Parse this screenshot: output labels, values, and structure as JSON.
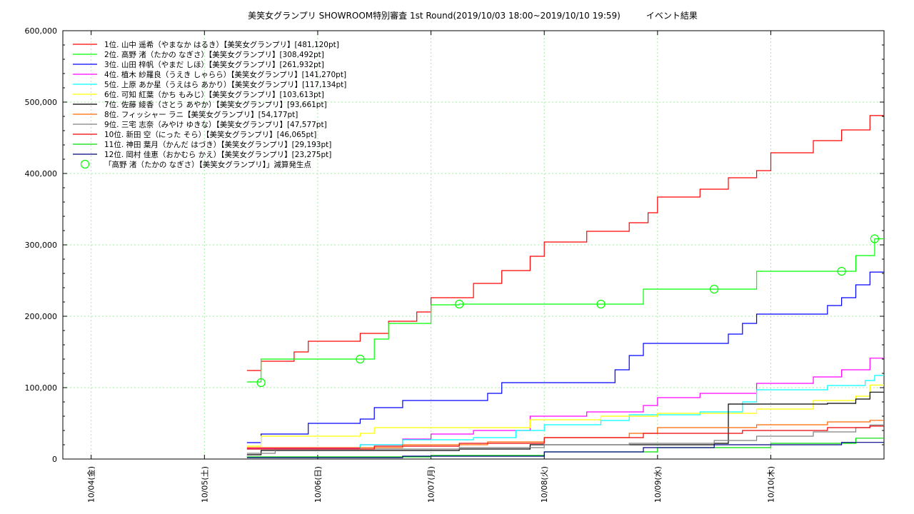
{
  "chart_data": {
    "type": "line",
    "title": "美笑女グランプリ SHOWROOM特別審査 1st Round(2019/10/03 18:00~2019/10/10 19:59)　　　イベント結果",
    "xlabel": "",
    "ylabel": "",
    "xlim": [
      "2019-10-03 18:00",
      "2019-10-10 23:59"
    ],
    "ylim": [
      0,
      600000
    ],
    "x_ticks": [
      {
        "x": "2019-10-04 00:00",
        "label": "10/04(金)"
      },
      {
        "x": "2019-10-05 00:00",
        "label": "10/05(土)"
      },
      {
        "x": "2019-10-06 00:00",
        "label": "10/06(日)"
      },
      {
        "x": "2019-10-07 00:00",
        "label": "10/07(月)"
      },
      {
        "x": "2019-10-08 00:00",
        "label": "10/08(火)"
      },
      {
        "x": "2019-10-09 00:00",
        "label": "10/09(水)"
      },
      {
        "x": "2019-10-10 00:00",
        "label": "10/10(木)"
      }
    ],
    "y_ticks": [
      {
        "value": 0,
        "label": "0"
      },
      {
        "value": 100000,
        "label": "100,000"
      },
      {
        "value": 200000,
        "label": "200,000"
      },
      {
        "value": 300000,
        "label": "300,000"
      },
      {
        "value": 400000,
        "label": "400,000"
      },
      {
        "value": 500000,
        "label": "500,000"
      },
      {
        "value": 600000,
        "label": "600,000"
      }
    ],
    "grid": true,
    "legend_position": "top-left",
    "series": [
      {
        "name": "1位. 山中 遥希（やまなか はるき）【美笑女グランプリ】[481,120pt]",
        "color": "#ff0000",
        "points": [
          [
            "2019-10-05 09:00",
            124000
          ],
          [
            "2019-10-05 12:00",
            137000
          ],
          [
            "2019-10-05 19:00",
            150000
          ],
          [
            "2019-10-05 22:00",
            165000
          ],
          [
            "2019-10-06 09:00",
            176000
          ],
          [
            "2019-10-06 15:00",
            193000
          ],
          [
            "2019-10-06 21:00",
            206000
          ],
          [
            "2019-10-07 00:00",
            226000
          ],
          [
            "2019-10-07 09:00",
            246000
          ],
          [
            "2019-10-07 15:00",
            264000
          ],
          [
            "2019-10-07 21:00",
            284000
          ],
          [
            "2019-10-08 00:00",
            304000
          ],
          [
            "2019-10-08 09:00",
            319000
          ],
          [
            "2019-10-08 18:00",
            331000
          ],
          [
            "2019-10-08 22:00",
            345000
          ],
          [
            "2019-10-09 00:00",
            367000
          ],
          [
            "2019-10-09 09:00",
            378000
          ],
          [
            "2019-10-09 15:00",
            394000
          ],
          [
            "2019-10-09 21:00",
            404000
          ],
          [
            "2019-10-10 00:00",
            429000
          ],
          [
            "2019-10-10 09:00",
            446000
          ],
          [
            "2019-10-10 15:00",
            461000
          ],
          [
            "2019-10-10 21:00",
            481120
          ],
          [
            "2019-10-10 23:59",
            481120
          ]
        ]
      },
      {
        "name": "2位. 高野 渚（たかの なぎさ）【美笑女グランプリ】[308,492pt]",
        "color": "#00ff00",
        "points": [
          [
            "2019-10-05 09:00",
            108000
          ],
          [
            "2019-10-05 12:00",
            140000
          ],
          [
            "2019-10-06 09:00",
            140000
          ],
          [
            "2019-10-06 12:00",
            168000
          ],
          [
            "2019-10-06 15:00",
            190000
          ],
          [
            "2019-10-07 00:00",
            216000
          ],
          [
            "2019-10-07 06:00",
            217000
          ],
          [
            "2019-10-08 21:00",
            238000
          ],
          [
            "2019-10-09 12:00",
            238000
          ],
          [
            "2019-10-09 21:00",
            263000
          ],
          [
            "2019-10-10 15:00",
            263000
          ],
          [
            "2019-10-10 18:00",
            285000
          ],
          [
            "2019-10-10 22:00",
            308492
          ],
          [
            "2019-10-10 23:59",
            308492
          ]
        ]
      },
      {
        "name": "3位. 山田 梓帆（やまだ しほ）【美笑女グランプリ】[261,932pt]",
        "color": "#0000ff",
        "points": [
          [
            "2019-10-05 09:00",
            23000
          ],
          [
            "2019-10-05 12:00",
            35000
          ],
          [
            "2019-10-05 22:00",
            50000
          ],
          [
            "2019-10-06 09:00",
            56000
          ],
          [
            "2019-10-06 12:00",
            72000
          ],
          [
            "2019-10-06 18:00",
            82000
          ],
          [
            "2019-10-07 06:00",
            82000
          ],
          [
            "2019-10-07 12:00",
            92000
          ],
          [
            "2019-10-07 15:00",
            107000
          ],
          [
            "2019-10-08 12:00",
            107000
          ],
          [
            "2019-10-08 15:00",
            125000
          ],
          [
            "2019-10-08 18:00",
            145000
          ],
          [
            "2019-10-08 21:00",
            162000
          ],
          [
            "2019-10-09 12:00",
            162000
          ],
          [
            "2019-10-09 15:00",
            175000
          ],
          [
            "2019-10-09 18:00",
            190000
          ],
          [
            "2019-10-09 21:00",
            203000
          ],
          [
            "2019-10-10 09:00",
            203000
          ],
          [
            "2019-10-10 12:00",
            215000
          ],
          [
            "2019-10-10 15:00",
            226000
          ],
          [
            "2019-10-10 18:00",
            244000
          ],
          [
            "2019-10-10 21:00",
            261932
          ],
          [
            "2019-10-10 23:59",
            261932
          ]
        ]
      },
      {
        "name": "4位. 植木 紗羅良（うえき しゃらら）【美笑女グランプリ】[141,270pt]",
        "color": "#ff00ff",
        "points": [
          [
            "2019-10-05 09:00",
            15000
          ],
          [
            "2019-10-06 09:00",
            20000
          ],
          [
            "2019-10-06 18:00",
            28000
          ],
          [
            "2019-10-07 00:00",
            35000
          ],
          [
            "2019-10-07 09:00",
            40000
          ],
          [
            "2019-10-07 21:00",
            60000
          ],
          [
            "2019-10-08 09:00",
            66000
          ],
          [
            "2019-10-08 21:00",
            75000
          ],
          [
            "2019-10-09 00:00",
            86000
          ],
          [
            "2019-10-09 09:00",
            92000
          ],
          [
            "2019-10-09 21:00",
            106000
          ],
          [
            "2019-10-10 09:00",
            115000
          ],
          [
            "2019-10-10 15:00",
            125000
          ],
          [
            "2019-10-10 21:00",
            141270
          ],
          [
            "2019-10-10 23:59",
            141270
          ]
        ]
      },
      {
        "name": "5位. 上原 あか星（うえはら あかり）【美笑女グランプリ】[117,134pt]",
        "color": "#00ffff",
        "points": [
          [
            "2019-10-05 09:00",
            14000
          ],
          [
            "2019-10-06 09:00",
            20000
          ],
          [
            "2019-10-06 18:00",
            27000
          ],
          [
            "2019-10-07 09:00",
            30000
          ],
          [
            "2019-10-07 18:00",
            40000
          ],
          [
            "2019-10-08 00:00",
            48000
          ],
          [
            "2019-10-08 12:00",
            54000
          ],
          [
            "2019-10-08 18:00",
            62000
          ],
          [
            "2019-10-09 09:00",
            66000
          ],
          [
            "2019-10-09 18:00",
            80000
          ],
          [
            "2019-10-09 21:00",
            97000
          ],
          [
            "2019-10-10 12:00",
            103000
          ],
          [
            "2019-10-10 20:00",
            110000
          ],
          [
            "2019-10-10 22:00",
            117134
          ],
          [
            "2019-10-10 23:59",
            117134
          ]
        ]
      },
      {
        "name": "6位. 可知 紅葉（かち もみじ）【美笑女グランプリ】[103,613pt]",
        "color": "#ffff00",
        "points": [
          [
            "2019-10-05 09:00",
            18000
          ],
          [
            "2019-10-05 12:00",
            32000
          ],
          [
            "2019-10-06 09:00",
            36000
          ],
          [
            "2019-10-06 12:00",
            44000
          ],
          [
            "2019-10-07 06:00",
            44000
          ],
          [
            "2019-10-07 21:00",
            55000
          ],
          [
            "2019-10-08 12:00",
            60000
          ],
          [
            "2019-10-09 00:00",
            64000
          ],
          [
            "2019-10-09 21:00",
            70000
          ],
          [
            "2019-10-10 09:00",
            82000
          ],
          [
            "2019-10-10 18:00",
            88000
          ],
          [
            "2019-10-10 21:00",
            103613
          ],
          [
            "2019-10-10 23:59",
            103613
          ]
        ]
      },
      {
        "name": "7位. 佐藤 綾香（さとう あやか）【美笑女グランプリ】[93,661pt]",
        "color": "#000000",
        "points": [
          [
            "2019-10-05 09:00",
            6000
          ],
          [
            "2019-10-05 12:00",
            12000
          ],
          [
            "2019-10-06 09:00",
            12000
          ],
          [
            "2019-10-07 06:00",
            14000
          ],
          [
            "2019-10-07 21:00",
            20000
          ],
          [
            "2019-10-09 12:00",
            22000
          ],
          [
            "2019-10-09 15:00",
            77000
          ],
          [
            "2019-10-10 12:00",
            78000
          ],
          [
            "2019-10-10 18:00",
            84000
          ],
          [
            "2019-10-10 21:00",
            93661
          ],
          [
            "2019-10-10 23:59",
            93661
          ]
        ]
      },
      {
        "name": "8位. フィッシャー ラニ【美笑女グランプリ】[54,177pt]",
        "color": "#ff6600",
        "points": [
          [
            "2019-10-05 09:00",
            16000
          ],
          [
            "2019-10-06 18:00",
            20000
          ],
          [
            "2019-10-07 12:00",
            24000
          ],
          [
            "2019-10-08 00:00",
            30000
          ],
          [
            "2019-10-08 18:00",
            36000
          ],
          [
            "2019-10-09 00:00",
            44000
          ],
          [
            "2019-10-09 21:00",
            48000
          ],
          [
            "2019-10-10 12:00",
            52000
          ],
          [
            "2019-10-10 21:00",
            54177
          ],
          [
            "2019-10-10 23:59",
            54177
          ]
        ]
      },
      {
        "name": "9位. 三宅 志奈（みやけ ゆきな）【美笑女グランプリ】[47,577pt]",
        "color": "#808080",
        "points": [
          [
            "2019-10-05 09:00",
            8000
          ],
          [
            "2019-10-05 15:00",
            14000
          ],
          [
            "2019-10-07 06:00",
            16000
          ],
          [
            "2019-10-08 00:00",
            20000
          ],
          [
            "2019-10-08 18:00",
            22000
          ],
          [
            "2019-10-09 12:00",
            26000
          ],
          [
            "2019-10-09 21:00",
            32000
          ],
          [
            "2019-10-10 09:00",
            38000
          ],
          [
            "2019-10-10 18:00",
            44000
          ],
          [
            "2019-10-10 21:00",
            47577
          ],
          [
            "2019-10-10 23:59",
            47577
          ]
        ]
      },
      {
        "name": "10位. 新田 空（にった そら）【美笑女グランプリ】[46,065pt]",
        "color": "#ee0000",
        "points": [
          [
            "2019-10-05 09:00",
            14000
          ],
          [
            "2019-10-06 12:00",
            18000
          ],
          [
            "2019-10-07 06:00",
            22000
          ],
          [
            "2019-10-08 00:00",
            30000
          ],
          [
            "2019-10-08 21:00",
            36000
          ],
          [
            "2019-10-09 18:00",
            40000
          ],
          [
            "2019-10-10 12:00",
            44000
          ],
          [
            "2019-10-10 21:00",
            46065
          ],
          [
            "2019-10-10 23:59",
            46065
          ]
        ]
      },
      {
        "name": "11位. 神田 葉月（かんだ はづき）【美笑女グランプリ】[29,193pt]",
        "color": "#00dd00",
        "points": [
          [
            "2019-10-05 09:00",
            3000
          ],
          [
            "2019-10-07 00:00",
            5000
          ],
          [
            "2019-10-08 00:00",
            10000
          ],
          [
            "2019-10-09 00:00",
            16000
          ],
          [
            "2019-10-10 00:00",
            22000
          ],
          [
            "2019-10-10 18:00",
            29193
          ],
          [
            "2019-10-10 23:59",
            29193
          ]
        ]
      },
      {
        "name": "12位. 岡村 佳恵（おかむら かえ）【美笑女グランプリ】[23,275pt]",
        "color": "#000080",
        "points": [
          [
            "2019-10-05 09:00",
            2000
          ],
          [
            "2019-10-06 18:00",
            4000
          ],
          [
            "2019-10-08 00:00",
            10000
          ],
          [
            "2019-10-08 21:00",
            16000
          ],
          [
            "2019-10-09 12:00",
            20000
          ],
          [
            "2019-10-10 15:00",
            23275
          ],
          [
            "2019-10-10 23:59",
            23275
          ]
        ]
      }
    ],
    "markers": {
      "name": "「高野 渚（たかの なぎさ）【美笑女グランプリ】」減算発生点",
      "color": "#00ff00",
      "points": [
        [
          "2019-10-05 12:00",
          107000
        ],
        [
          "2019-10-06 09:00",
          140000
        ],
        [
          "2019-10-07 06:00",
          217000
        ],
        [
          "2019-10-08 12:00",
          217000
        ],
        [
          "2019-10-09 12:00",
          238000
        ],
        [
          "2019-10-10 15:00",
          263000
        ],
        [
          "2019-10-10 22:00",
          308492
        ]
      ]
    }
  }
}
